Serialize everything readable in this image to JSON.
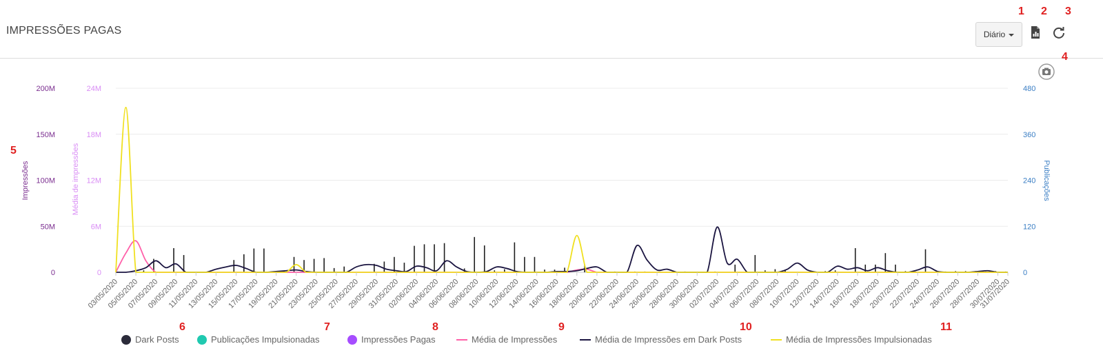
{
  "header": {
    "title": "IMPRESSÕES PAGAS",
    "period_label": "Diário"
  },
  "toolbar": {
    "export_icon": "document-chart-icon",
    "refresh_icon": "refresh-icon",
    "camera_icon": "camera-icon"
  },
  "annotations": [
    "1",
    "2",
    "3",
    "4",
    "5",
    "6",
    "7",
    "8",
    "9",
    "10",
    "11"
  ],
  "legend": [
    {
      "label": "Dark Posts",
      "color": "#2b2b3a",
      "kind": "dot"
    },
    {
      "label": "Publicações Impulsionadas",
      "color": "#20c9b0",
      "kind": "dot"
    },
    {
      "label": "Impressões Pagas",
      "color": "#a64dff",
      "kind": "dot"
    },
    {
      "label": "Média de Impressões",
      "color": "#ff5fa8",
      "kind": "line"
    },
    {
      "label": "Média de Impressões em Dark Posts",
      "color": "#1a1440",
      "kind": "line"
    },
    {
      "label": "Média de Impressões Impulsionadas",
      "color": "#f0e020",
      "kind": "line"
    }
  ],
  "chart_data": {
    "type": "bar",
    "axes": {
      "left1": {
        "label": "Impressões",
        "ticks": [
          "0",
          "50M",
          "100M",
          "150M",
          "200M"
        ],
        "range": [
          0,
          200000000
        ],
        "color": "#7a2d8f"
      },
      "left2": {
        "label": "Média de impressões",
        "ticks": [
          "0",
          "6M",
          "12M",
          "18M",
          "24M"
        ],
        "range": [
          0,
          24000000
        ],
        "color": "#d98cf5"
      },
      "right": {
        "label": "Publicações",
        "ticks": [
          "0",
          "120",
          "240",
          "360",
          "480"
        ],
        "range": [
          0,
          480
        ],
        "color": "#3a7ec4"
      }
    },
    "x": [
      "03/05/2020",
      "04/05/2020",
      "05/05/2020",
      "06/05/2020",
      "07/05/2020",
      "08/05/2020",
      "09/05/2020",
      "10/05/2020",
      "11/05/2020",
      "12/05/2020",
      "13/05/2020",
      "14/05/2020",
      "15/05/2020",
      "16/05/2020",
      "17/05/2020",
      "18/05/2020",
      "19/05/2020",
      "20/05/2020",
      "21/05/2020",
      "22/05/2020",
      "23/05/2020",
      "24/05/2020",
      "25/05/2020",
      "26/05/2020",
      "27/05/2020",
      "28/05/2020",
      "29/05/2020",
      "30/05/2020",
      "31/05/2020",
      "01/06/2020",
      "02/06/2020",
      "03/06/2020",
      "04/06/2020",
      "05/06/2020",
      "06/06/2020",
      "07/06/2020",
      "08/06/2020",
      "09/06/2020",
      "10/06/2020",
      "11/06/2020",
      "12/06/2020",
      "13/06/2020",
      "14/06/2020",
      "15/06/2020",
      "16/06/2020",
      "17/06/2020",
      "18/06/2020",
      "19/06/2020",
      "20/06/2020",
      "21/06/2020",
      "22/06/2020",
      "23/06/2020",
      "24/06/2020",
      "25/06/2020",
      "26/06/2020",
      "27/06/2020",
      "28/06/2020",
      "29/06/2020",
      "30/06/2020",
      "01/07/2020",
      "02/07/2020",
      "03/07/2020",
      "04/07/2020",
      "05/07/2020",
      "06/07/2020",
      "07/07/2020",
      "08/07/2020",
      "09/07/2020",
      "10/07/2020",
      "11/07/2020",
      "12/07/2020",
      "13/07/2020",
      "14/07/2020",
      "15/07/2020",
      "16/07/2020",
      "17/07/2020",
      "18/07/2020",
      "19/07/2020",
      "20/07/2020",
      "21/07/2020",
      "22/07/2020",
      "23/07/2020",
      "24/07/2020",
      "25/07/2020",
      "26/07/2020",
      "27/07/2020",
      "28/07/2020",
      "29/07/2020",
      "30/07/2020",
      "31/07/2020"
    ],
    "x_tick_labels": [
      "03/05/2020",
      "05/05/2020",
      "07/05/2020",
      "09/05/2020",
      "11/05/2020",
      "13/05/2020",
      "15/05/2020",
      "17/05/2020",
      "19/05/2020",
      "21/05/2020",
      "23/05/2020",
      "25/05/2020",
      "27/05/2020",
      "29/05/2020",
      "31/05/2020",
      "02/06/2020",
      "04/06/2020",
      "06/06/2020",
      "08/06/2020",
      "10/06/2020",
      "12/06/2020",
      "14/06/2020",
      "16/06/2020",
      "18/06/2020",
      "20/06/2020",
      "22/06/2020",
      "24/06/2020",
      "26/06/2020",
      "28/06/2020",
      "30/06/2020",
      "02/07/2020",
      "04/07/2020",
      "06/07/2020",
      "08/07/2020",
      "10/07/2020",
      "12/07/2020",
      "14/07/2020",
      "16/07/2020",
      "18/07/2020",
      "20/07/2020",
      "22/07/2020",
      "24/07/2020",
      "26/07/2020",
      "28/07/2020",
      "30/07/2020",
      "31/07/2020"
    ],
    "series": [
      {
        "name": "Dark Posts",
        "type": "bar",
        "axis": "right",
        "color": "#1e1e1e",
        "values": [
          0,
          0,
          0,
          5,
          35,
          0,
          63,
          45,
          0,
          0,
          0,
          0,
          32,
          47,
          62,
          62,
          0,
          4,
          40,
          32,
          35,
          37,
          11,
          15,
          0,
          0,
          22,
          28,
          40,
          25,
          69,
          73,
          73,
          76,
          0,
          10,
          92,
          70,
          5,
          8,
          78,
          40,
          40,
          7,
          7,
          12,
          0,
          20,
          0,
          0,
          2,
          0,
          2,
          2,
          0,
          0,
          0,
          2,
          0,
          0,
          2,
          0,
          20,
          0,
          45,
          5,
          8,
          5,
          0,
          0,
          0,
          3,
          5,
          0,
          63,
          20,
          20,
          50,
          20,
          3,
          2,
          60,
          0,
          2,
          3,
          3,
          3,
          2,
          3,
          2
        ]
      },
      {
        "name": "Publicações Impulsionadas",
        "type": "bar",
        "axis": "right",
        "color": "#20c9b0",
        "values": [
          0,
          0,
          0,
          0,
          0,
          0,
          0,
          0,
          0,
          0,
          0,
          0,
          0,
          0,
          0,
          0,
          0,
          0,
          0,
          0,
          0,
          0,
          0,
          0,
          0,
          0,
          0,
          0,
          0,
          0,
          0,
          0,
          0,
          0,
          0,
          0,
          0,
          0,
          0,
          0,
          0,
          0,
          0,
          0,
          0,
          0,
          0,
          0,
          0,
          0,
          0,
          0,
          0,
          0,
          0,
          0,
          0,
          0,
          0,
          0,
          0,
          0,
          0,
          0,
          0,
          0,
          0,
          0,
          0,
          0,
          0,
          0,
          0,
          0,
          0,
          0,
          0,
          0,
          0,
          0,
          0,
          0,
          0,
          0,
          0,
          0,
          0,
          0,
          0,
          0
        ]
      },
      {
        "name": "Impressões Pagas",
        "type": "bar",
        "axis": "left1",
        "color": "#a64dff",
        "values": [
          0,
          3,
          44,
          33,
          1,
          60,
          28,
          15,
          0,
          0,
          6,
          33,
          56,
          24,
          0,
          0,
          3,
          3,
          4,
          0,
          0,
          0,
          0,
          0,
          0,
          31,
          67,
          35,
          28,
          2,
          55,
          160,
          0,
          0,
          46,
          17,
          0,
          0,
          0,
          83,
          5,
          0,
          14,
          0,
          1,
          1,
          0,
          10,
          8,
          0,
          0,
          0,
          0,
          6,
          20,
          6,
          0,
          0,
          0,
          0,
          0,
          11,
          16,
          0,
          0,
          0,
          0,
          6,
          0,
          0,
          0,
          0,
          12,
          12,
          0,
          0,
          0,
          46,
          0,
          28,
          0,
          0,
          0,
          0,
          0,
          0,
          0,
          0,
          0,
          0
        ]
      },
      {
        "name": "Média de Impressões",
        "type": "line",
        "axis": "left2",
        "color": "#ff5fa8",
        "values": [
          0,
          2500000,
          4100000,
          1500000,
          0,
          0,
          0,
          0,
          0,
          0,
          0,
          0,
          0,
          0,
          0,
          0,
          0,
          0,
          0,
          0,
          0,
          0,
          0,
          0,
          0,
          0,
          0,
          0,
          0,
          0,
          0,
          0,
          0,
          0,
          0,
          0,
          0,
          0,
          0,
          0,
          0,
          0,
          0,
          0,
          0,
          0,
          300000,
          400000,
          0,
          0,
          0,
          0,
          0,
          0,
          0,
          0,
          0,
          0,
          0,
          0,
          0,
          0,
          0,
          0,
          0,
          0,
          0,
          0,
          0,
          0,
          0,
          0,
          0,
          0,
          0,
          0,
          0,
          0,
          0,
          0,
          0,
          0,
          0,
          0,
          0,
          0,
          0,
          0,
          0,
          0
        ]
      },
      {
        "name": "Média de Impressões em Dark Posts",
        "type": "line",
        "axis": "left2",
        "color": "#1a1440",
        "values": [
          0,
          0,
          200000,
          600000,
          1500000,
          600000,
          1100000,
          0,
          0,
          0,
          400000,
          700000,
          900000,
          500000,
          0,
          0,
          100000,
          200000,
          300000,
          100000,
          0,
          0,
          0,
          0,
          700000,
          1000000,
          900000,
          400000,
          200000,
          100000,
          800000,
          600000,
          200000,
          1500000,
          700000,
          100000,
          0,
          100000,
          700000,
          500000,
          100000,
          0,
          0,
          0,
          100000,
          100000,
          200000,
          500000,
          700000,
          0,
          0,
          0,
          3500000,
          1600000,
          300000,
          400000,
          0,
          0,
          0,
          0,
          5900000,
          1200000,
          1700000,
          0,
          0,
          0,
          0,
          400000,
          1200000,
          300000,
          0,
          0,
          800000,
          400000,
          600000,
          200000,
          600000,
          200000,
          0,
          0,
          300000,
          700000,
          100000,
          0,
          0,
          0,
          100000,
          200000,
          0,
          0
        ]
      },
      {
        "name": "Média de Impressões Impulsionadas",
        "type": "line",
        "axis": "left2",
        "color": "#f0e020",
        "values": [
          0,
          21500000,
          0,
          0,
          0,
          0,
          0,
          0,
          0,
          0,
          0,
          0,
          0,
          0,
          0,
          0,
          0,
          0,
          1000000,
          0,
          0,
          0,
          0,
          0,
          0,
          0,
          0,
          0,
          0,
          0,
          0,
          0,
          0,
          0,
          0,
          0,
          0,
          0,
          0,
          0,
          0,
          0,
          0,
          0,
          0,
          0,
          4800000,
          0,
          0,
          0,
          0,
          0,
          0,
          0,
          0,
          0,
          0,
          0,
          0,
          0,
          0,
          0,
          0,
          0,
          0,
          0,
          0,
          0,
          0,
          0,
          0,
          0,
          0,
          0,
          0,
          0,
          0,
          0,
          0,
          0,
          0,
          0,
          0,
          0,
          0,
          0,
          0,
          0,
          0,
          0
        ]
      }
    ],
    "grid": true,
    "legend_position": "bottom"
  }
}
